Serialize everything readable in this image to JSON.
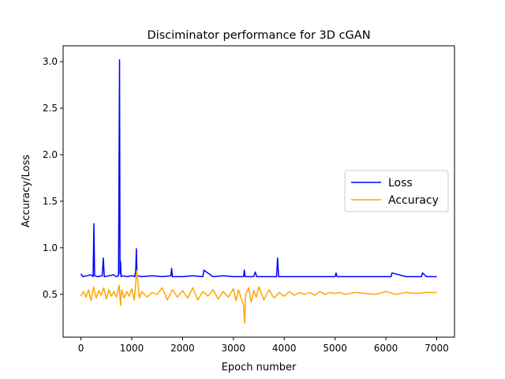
{
  "chart_data": {
    "type": "line",
    "title": "Disciminator performance for 3D cGAN",
    "xlabel": "Epoch number",
    "ylabel": "Accuracy/Loss",
    "xlim": [
      -350,
      7350
    ],
    "ylim": [
      0.04,
      3.17
    ],
    "xticks": [
      0,
      1000,
      2000,
      3000,
      4000,
      5000,
      6000,
      7000
    ],
    "yticks": [
      0.5,
      1.0,
      1.5,
      2.0,
      2.5,
      3.0
    ],
    "xtick_labels": [
      "0",
      "1000",
      "2000",
      "3000",
      "4000",
      "5000",
      "6000",
      "7000"
    ],
    "ytick_labels": [
      "0.5",
      "1.0",
      "1.5",
      "2.0",
      "2.5",
      "3.0"
    ],
    "grid": false,
    "legend_position": "center-right",
    "series": [
      {
        "name": "Loss",
        "color": "#0000ff",
        "x": [
          0,
          40,
          120,
          200,
          240,
          255,
          270,
          330,
          420,
          440,
          460,
          560,
          640,
          700,
          740,
          760,
          770,
          780,
          790,
          820,
          900,
          1000,
          1060,
          1080,
          1090,
          1105,
          1200,
          1400,
          1600,
          1770,
          1785,
          1800,
          2000,
          2200,
          2400,
          2420,
          2600,
          2800,
          3000,
          3200,
          3215,
          3230,
          3400,
          3430,
          3460,
          3600,
          3800,
          3850,
          3870,
          3890,
          4000,
          4200,
          4500,
          4800,
          5000,
          5020,
          5040,
          5400,
          5700,
          6000,
          6100,
          6120,
          6400,
          6700,
          6720,
          6800,
          7000
        ],
        "values": [
          0.72,
          0.69,
          0.7,
          0.71,
          0.69,
          1.26,
          0.7,
          0.69,
          0.7,
          0.89,
          0.69,
          0.7,
          0.71,
          0.69,
          0.7,
          3.02,
          0.72,
          0.85,
          0.69,
          0.7,
          0.69,
          0.7,
          0.69,
          0.76,
          0.99,
          0.7,
          0.69,
          0.7,
          0.69,
          0.7,
          0.78,
          0.69,
          0.69,
          0.7,
          0.69,
          0.76,
          0.69,
          0.7,
          0.69,
          0.69,
          0.76,
          0.69,
          0.69,
          0.74,
          0.69,
          0.69,
          0.69,
          0.69,
          0.89,
          0.69,
          0.69,
          0.69,
          0.69,
          0.69,
          0.69,
          0.73,
          0.69,
          0.69,
          0.69,
          0.69,
          0.69,
          0.73,
          0.69,
          0.69,
          0.73,
          0.69,
          0.69
        ]
      },
      {
        "name": "Accuracy",
        "color": "#ffa500",
        "x": [
          0,
          50,
          100,
          150,
          200,
          250,
          300,
          350,
          400,
          450,
          500,
          550,
          600,
          650,
          700,
          750,
          780,
          800,
          850,
          900,
          950,
          1000,
          1050,
          1100,
          1150,
          1200,
          1300,
          1400,
          1500,
          1600,
          1700,
          1800,
          1900,
          2000,
          2100,
          2200,
          2300,
          2400,
          2500,
          2600,
          2700,
          2800,
          2900,
          3000,
          3050,
          3100,
          3150,
          3200,
          3220,
          3240,
          3300,
          3350,
          3400,
          3450,
          3500,
          3600,
          3700,
          3800,
          3900,
          4000,
          4100,
          4200,
          4300,
          4400,
          4500,
          4600,
          4700,
          4800,
          4900,
          5000,
          5100,
          5200,
          5400,
          5600,
          5800,
          6000,
          6200,
          6400,
          6600,
          6800,
          7000
        ],
        "values": [
          0.48,
          0.53,
          0.47,
          0.55,
          0.43,
          0.58,
          0.46,
          0.54,
          0.49,
          0.57,
          0.45,
          0.55,
          0.48,
          0.53,
          0.47,
          0.6,
          0.38,
          0.55,
          0.46,
          0.53,
          0.48,
          0.56,
          0.44,
          0.76,
          0.46,
          0.53,
          0.47,
          0.52,
          0.5,
          0.57,
          0.44,
          0.55,
          0.47,
          0.54,
          0.46,
          0.57,
          0.44,
          0.53,
          0.48,
          0.55,
          0.45,
          0.53,
          0.47,
          0.56,
          0.43,
          0.55,
          0.46,
          0.38,
          0.19,
          0.5,
          0.57,
          0.42,
          0.54,
          0.47,
          0.58,
          0.44,
          0.55,
          0.46,
          0.52,
          0.48,
          0.53,
          0.49,
          0.52,
          0.5,
          0.52,
          0.49,
          0.53,
          0.5,
          0.52,
          0.51,
          0.52,
          0.5,
          0.52,
          0.51,
          0.5,
          0.53,
          0.5,
          0.52,
          0.51,
          0.52,
          0.52
        ]
      }
    ]
  }
}
